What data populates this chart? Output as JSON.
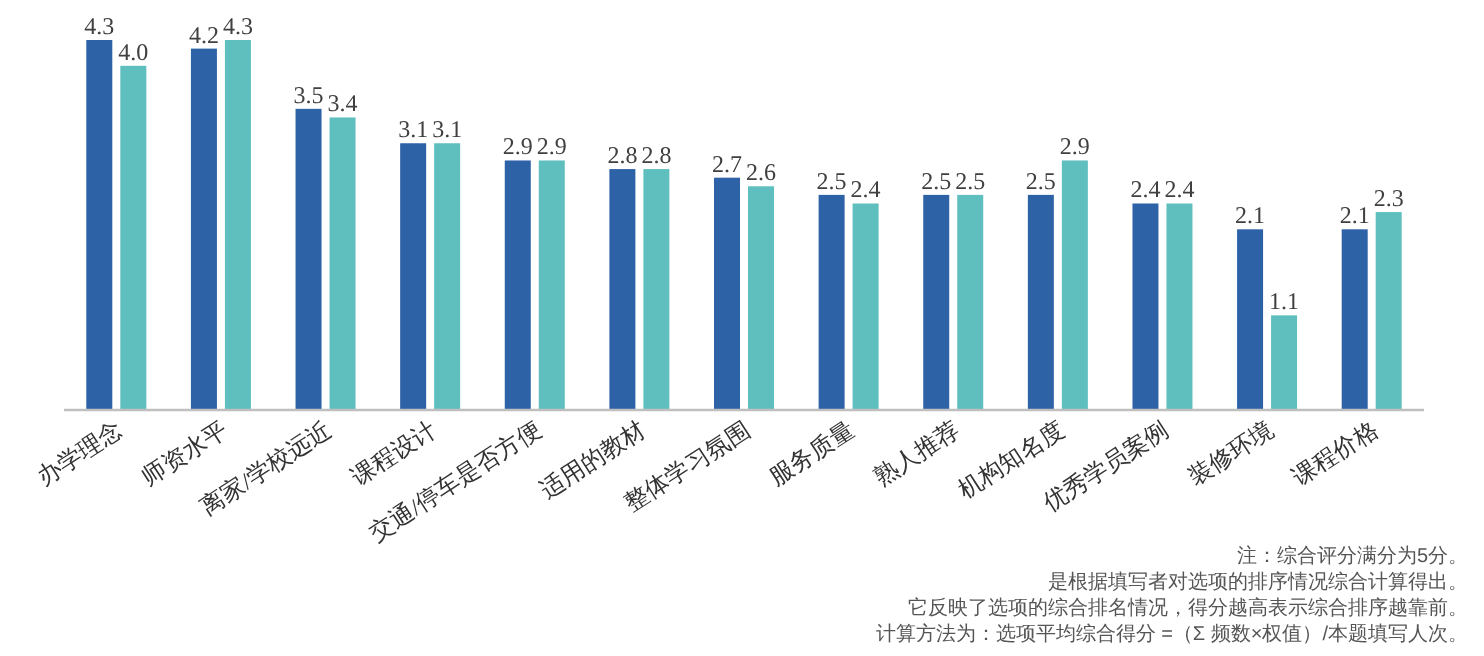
{
  "chart_data": {
    "type": "bar",
    "categories": [
      "办学理念",
      "师资水平",
      "离家/学校远近",
      "课程设计",
      "交通/停车是否方便",
      "适用的教材",
      "整体学习氛围",
      "服务质量",
      "熟人推荐",
      "机构知名度",
      "优秀学员案例",
      "装修环境",
      "课程价格"
    ],
    "series": [
      {
        "color": "#2e62a6",
        "values": [
          4.3,
          4.2,
          3.5,
          3.1,
          2.9,
          2.8,
          2.7,
          2.5,
          2.5,
          2.5,
          2.4,
          2.1,
          2.1
        ],
        "value_labels": [
          "4.3",
          "4.2",
          "3.5",
          "3.1",
          "2.9",
          "2.8",
          "2.7",
          "2.5",
          "2.5",
          "2.5",
          "2.4",
          "2.1",
          "2.1"
        ]
      },
      {
        "color": "#5fbfbf",
        "values": [
          4.0,
          4.3,
          3.4,
          3.1,
          2.9,
          2.8,
          2.6,
          2.4,
          2.5,
          2.9,
          2.4,
          1.1,
          2.3
        ],
        "value_labels": [
          "4.0",
          "4.3",
          "3.4",
          "3.1",
          "2.9",
          "2.8",
          "2.6",
          "2.4",
          "2.5",
          "2.9",
          "2.4",
          "1.1",
          "2.3"
        ]
      }
    ],
    "annotations": [
      "注：综合评分满分为5分。",
      "是根据填写者对选项的排序情况综合计算得出。",
      "它反映了选项的综合排名情况，得分越高表示综合排序越靠前。",
      "计算方法为：选项平均综合得分 =（Σ 频数×权值）/本题填写人次。"
    ]
  }
}
